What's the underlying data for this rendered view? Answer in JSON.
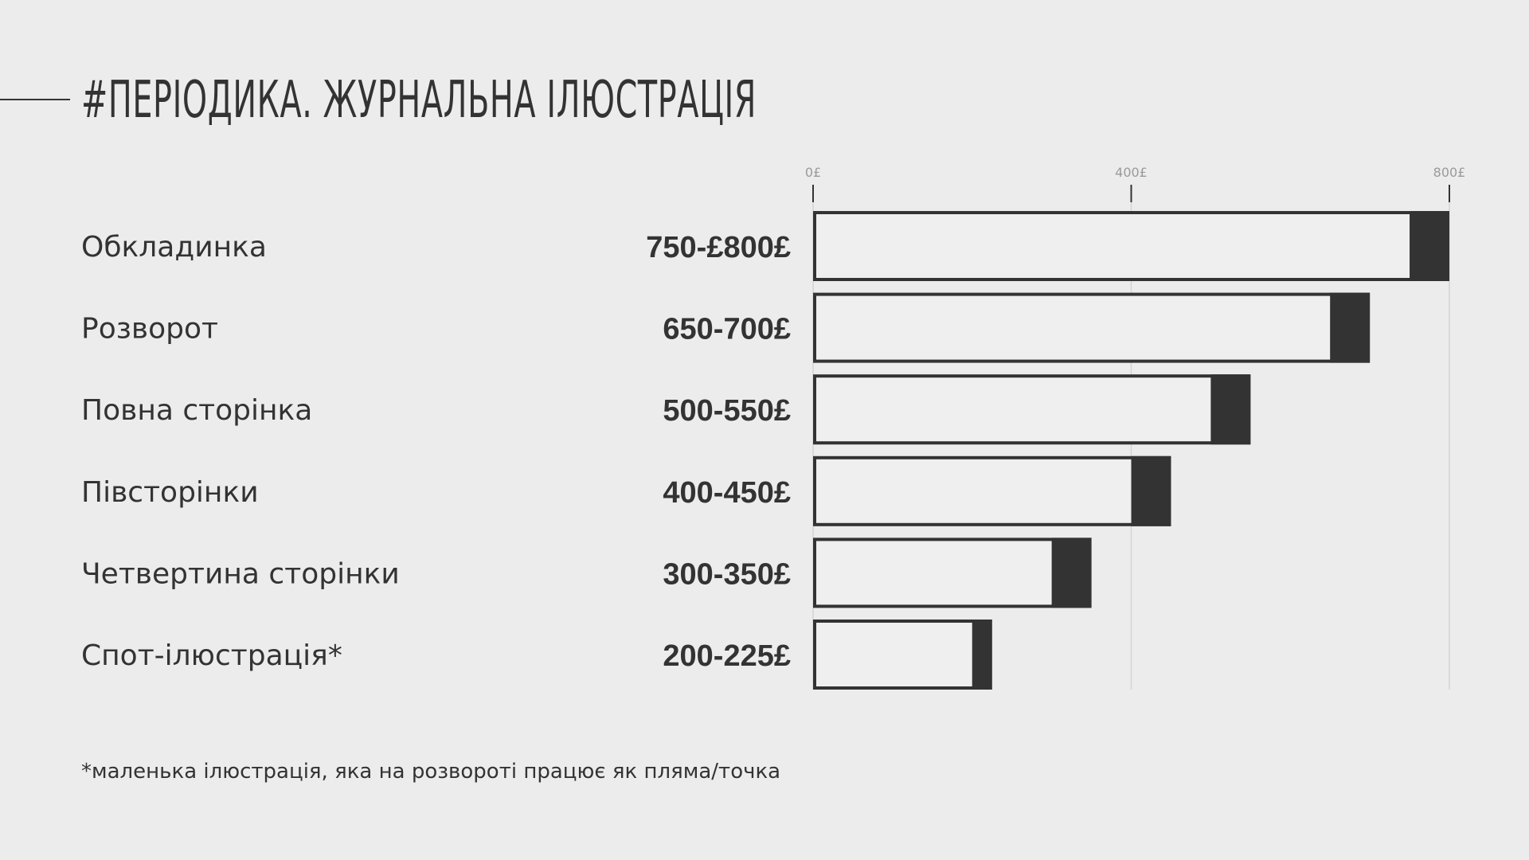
{
  "title": "#ПЕРІОДИКА. ЖУРНАЛЬНА ІЛЮСТРАЦІЯ",
  "footnote": "*маленька ілюстрація, яка на розвороті працює як пляма/точка",
  "colors": {
    "background": "#ececec",
    "bar_dark": "#333333",
    "bar_light": "#efefef",
    "grid": "#d4d4d4",
    "tick_text": "#9a9a9a"
  },
  "chart_data": {
    "type": "bar",
    "orientation": "horizontal",
    "title": "#ПЕРІОДИКА. ЖУРНАЛЬНА ІЛЮСТРАЦІЯ",
    "xlabel": "",
    "ylabel": "",
    "xlim": [
      0,
      800
    ],
    "x_ticks": [
      0,
      400,
      800
    ],
    "x_tick_labels": [
      "0£",
      "400£",
      "800£"
    ],
    "grid": true,
    "categories": [
      "Обкладинка",
      "Розворот",
      "Повна сторінка",
      "Півсторінки",
      "Четвертина сторінки",
      "Спот-ілюстрація*"
    ],
    "range_labels": [
      "750-£800£",
      "650-700£",
      "500-550£",
      "400-450£",
      "300-350£",
      "200-225£"
    ],
    "min_values": [
      750,
      650,
      500,
      400,
      300,
      200
    ],
    "max_values": [
      800,
      700,
      550,
      450,
      350,
      225
    ]
  }
}
